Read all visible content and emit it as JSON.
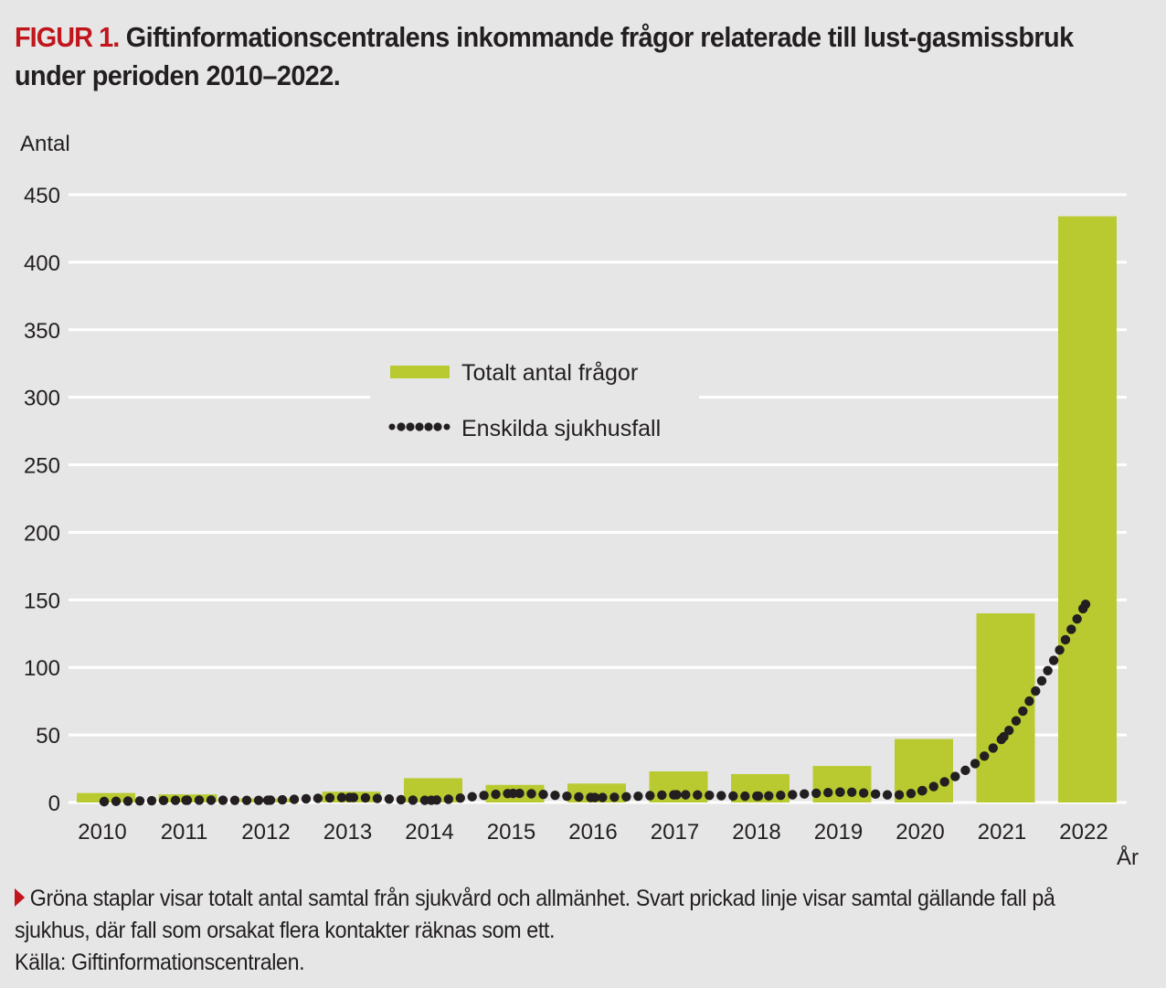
{
  "figure": {
    "label": "FIGUR 1.",
    "title": "Giftinformationscentralens inkommande frågor relaterade till lust-gasmissbruk under perioden 2010–2022."
  },
  "caption": {
    "line1": "Gröna staplar visar totalt antal samtal från sjukvård och allmänhet. Svart prickad linje visar samtal gällande fall på sjukhus, där fall som orsakat flera kontakter räknas som ett.",
    "source": "Källa: Giftinformationscentralen."
  },
  "colors": {
    "bar": "#b8ca30",
    "line": "#231f20",
    "accent": "#c0161c",
    "grid": "#ffffff",
    "background": "#e6e6e6"
  },
  "chart_data": {
    "type": "bar",
    "title": "Giftinformationscentralens inkommande frågor relaterade till lustgasmissbruk under perioden 2010–2022.",
    "xlabel": "År",
    "ylabel": "Antal",
    "ylim": [
      0,
      450
    ],
    "yticks": [
      0,
      50,
      100,
      150,
      200,
      250,
      300,
      350,
      400,
      450
    ],
    "grid": true,
    "legend_position": "center-left",
    "categories": [
      "2010",
      "2011",
      "2012",
      "2013",
      "2014",
      "2015",
      "2016",
      "2017",
      "2018",
      "2019",
      "2020",
      "2021",
      "2022"
    ],
    "series": [
      {
        "name": "Totalt antal frågor",
        "type": "bar",
        "values": [
          7,
          6,
          3,
          8,
          18,
          13,
          14,
          23,
          21,
          27,
          47,
          140,
          434
        ]
      },
      {
        "name": "Enskilda sjukhusfall",
        "type": "line-dotted",
        "values": [
          0,
          1,
          1,
          3,
          1,
          6,
          3,
          5,
          4,
          7,
          8,
          48,
          146
        ]
      }
    ]
  }
}
